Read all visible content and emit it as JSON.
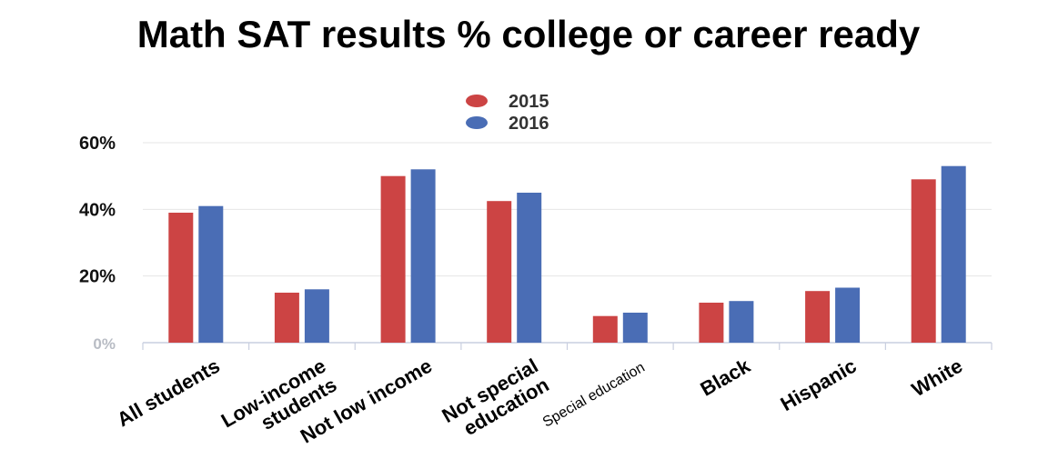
{
  "chart_data": {
    "type": "bar",
    "title": "Math SAT results % college or career ready",
    "xlabel": "",
    "ylabel": "",
    "ylim": [
      0,
      60
    ],
    "yticks": [
      {
        "value": 0,
        "label": "0%"
      },
      {
        "value": 20,
        "label": "20%"
      },
      {
        "value": 40,
        "label": "40%"
      },
      {
        "value": 60,
        "label": "60%"
      }
    ],
    "grid": true,
    "legend_position": "top-center",
    "categories": [
      {
        "label": "All students",
        "lines": [
          "All students"
        ]
      },
      {
        "label": "Low-income students",
        "lines": [
          "Low-income",
          "students"
        ]
      },
      {
        "label": "Not low income",
        "lines": [
          "Not low income"
        ]
      },
      {
        "label": "Not special education",
        "lines": [
          "Not special",
          "education"
        ]
      },
      {
        "label": "Special education",
        "lines": [
          "Special education"
        ]
      },
      {
        "label": "Black",
        "lines": [
          "Black"
        ]
      },
      {
        "label": "Hispanic",
        "lines": [
          "Hispanic"
        ]
      },
      {
        "label": "White",
        "lines": [
          "White"
        ]
      }
    ],
    "series": [
      {
        "name": "2015",
        "color": "#cc4444",
        "values": [
          39,
          15,
          50,
          42.5,
          8,
          12,
          15.5,
          49
        ]
      },
      {
        "name": "2016",
        "color": "#4a6db5",
        "values": [
          41,
          16,
          52,
          45,
          9,
          12.5,
          16.5,
          53
        ]
      }
    ]
  }
}
